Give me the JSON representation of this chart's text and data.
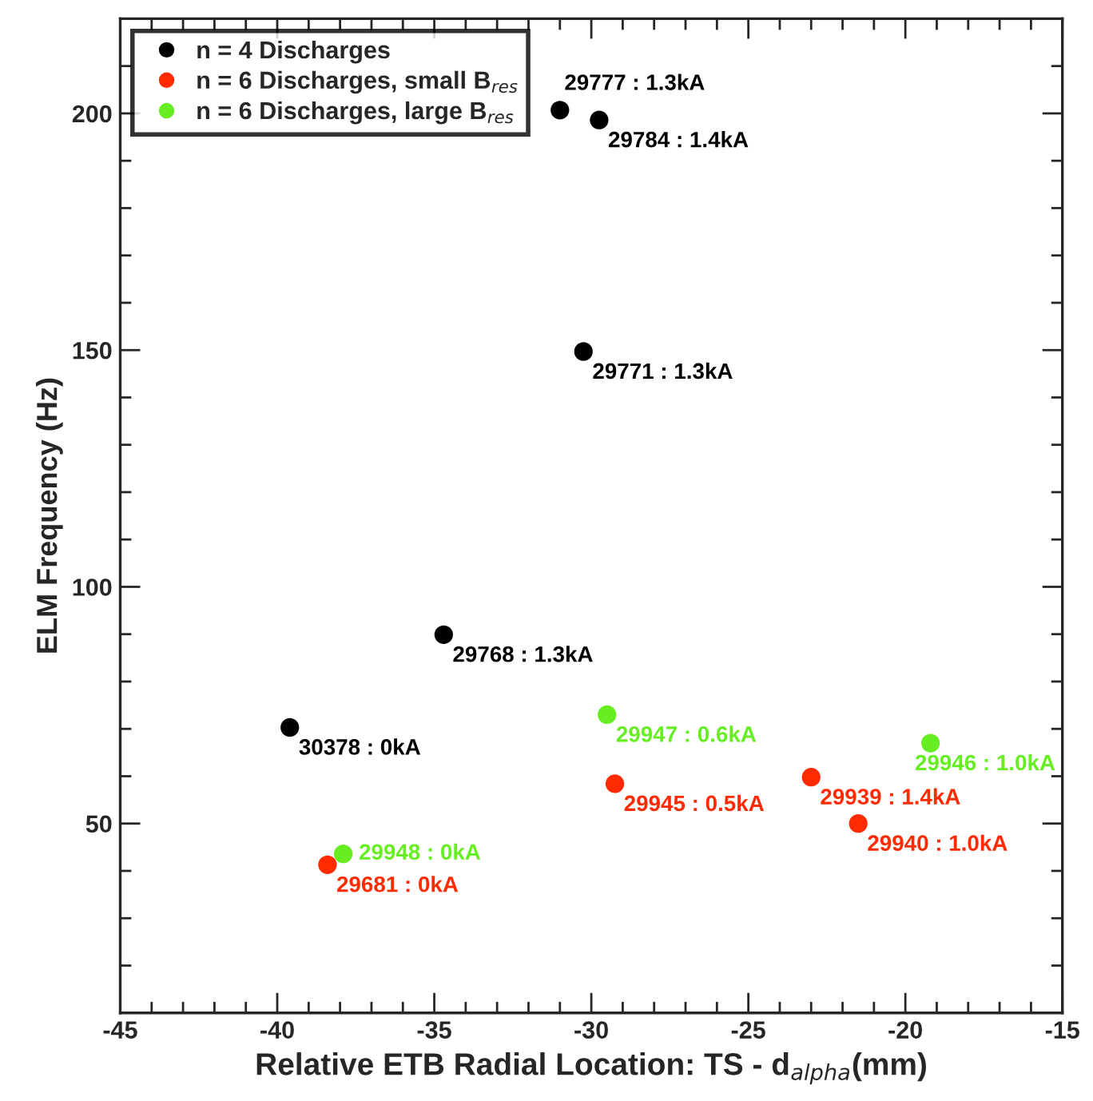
{
  "chart_data": {
    "type": "scatter",
    "xlabel": "Relative ETB Radial Location: TS - d$_{alpha}$(mm)",
    "ylabel": "ELM Frequency (Hz)",
    "xlim": [
      -45,
      -15
    ],
    "ylim": [
      10,
      220
    ],
    "xticks": [
      -45,
      {
        "value": -44,
        "label": null
      },
      {
        "value": -43,
        "label": null
      },
      {
        "value": -42,
        "label": null
      },
      {
        "value": -41,
        "label": null
      },
      -40,
      {
        "value": -39,
        "label": null
      },
      {
        "value": -38,
        "label": null
      },
      {
        "value": -37,
        "label": null
      },
      {
        "value": -36,
        "label": null
      },
      -35,
      {
        "value": -34,
        "label": null
      },
      {
        "value": -33,
        "label": null
      },
      {
        "value": -32,
        "label": null
      },
      {
        "value": -31,
        "label": null
      },
      -30,
      {
        "value": -29,
        "label": null
      },
      {
        "value": -28,
        "label": null
      },
      {
        "value": -27,
        "label": null
      },
      {
        "value": -26,
        "label": null
      },
      -25,
      {
        "value": -24,
        "label": null
      },
      {
        "value": -23,
        "label": null
      },
      {
        "value": -22,
        "label": null
      },
      {
        "value": -21,
        "label": null
      },
      -20,
      {
        "value": -19,
        "label": null
      },
      {
        "value": -18,
        "label": null
      },
      {
        "value": -17,
        "label": null
      },
      {
        "value": -16,
        "label": null
      },
      -15
    ],
    "yticks": [
      {
        "value": 20,
        "label": null
      },
      {
        "value": 30,
        "label": null
      },
      {
        "value": 40,
        "label": null
      },
      50,
      {
        "value": 60,
        "label": null
      },
      {
        "value": 70,
        "label": null
      },
      {
        "value": 80,
        "label": null
      },
      {
        "value": 90,
        "label": null
      },
      100,
      {
        "value": 110,
        "label": null
      },
      {
        "value": 120,
        "label": null
      },
      {
        "value": 130,
        "label": null
      },
      {
        "value": 140,
        "label": null
      },
      150,
      {
        "value": 160,
        "label": null
      },
      {
        "value": 170,
        "label": null
      },
      {
        "value": 180,
        "label": null
      },
      {
        "value": 190,
        "label": null
      },
      200,
      {
        "value": 210,
        "label": null
      }
    ],
    "grid": false,
    "legend": "top left",
    "marker": "circle",
    "series": [
      {
        "name": "n = 4 Discharges",
        "color": "#000000",
        "x": [
          -31.0,
          -29.75,
          -30.25,
          -34.7,
          -39.6
        ],
        "values": [
          200.7,
          198.6,
          149.7,
          89.9,
          70.3
        ],
        "value_labels": [
          "29777 : 1.3kA",
          "29784 : 1.4kA",
          "29771 : 1.3kA",
          "29768 : 1.3kA",
          "30378 : 0kA"
        ]
      },
      {
        "name": "n = 6 Discharges, small B$_{res}$",
        "color": "#ff2a00",
        "x": [
          -29.25,
          -23.0,
          -21.5,
          -38.4
        ],
        "values": [
          58.4,
          59.8,
          50.0,
          41.3
        ],
        "value_labels": [
          "29945 : 0.5kA",
          "29939 : 1.4kA",
          "29940 : 1.0kA",
          "29681 : 0kA"
        ]
      },
      {
        "name": "n = 6 Discharges, large B$_{res}$",
        "color": "#66ee22",
        "x": [
          -29.5,
          -19.2,
          -37.9
        ],
        "values": [
          73.0,
          67.0,
          43.6
        ],
        "value_labels": [
          "29947 : 0.6kA",
          "29946 : 1.0kA",
          "29948 : 0kA"
        ]
      }
    ]
  }
}
